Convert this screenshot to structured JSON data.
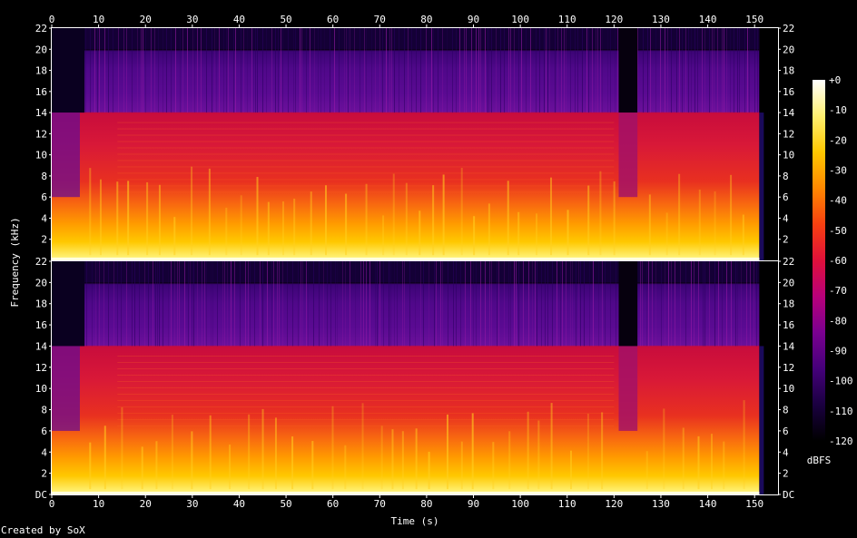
{
  "chart_data": {
    "type": "heatmap",
    "x_axis": {
      "label": "Time (s)",
      "range": [
        0,
        155
      ],
      "ticks": [
        0,
        10,
        20,
        30,
        40,
        50,
        60,
        70,
        80,
        90,
        100,
        110,
        120,
        130,
        140,
        150
      ],
      "tick_labels": [
        "0",
        "10",
        "20",
        "30",
        "40",
        "50",
        "60",
        "70",
        "80",
        "90",
        "100",
        "110",
        "120",
        "130",
        "140",
        "150"
      ]
    },
    "y_axis": {
      "label": "Frequency (kHz)",
      "range": [
        0,
        22
      ],
      "ticks": [
        0,
        2,
        4,
        6,
        8,
        10,
        12,
        14,
        16,
        18,
        20,
        22
      ],
      "top_channel_tick_labels": [
        "2",
        "4",
        "6",
        "8",
        "10",
        "12",
        "14",
        "16",
        "18",
        "20",
        "22"
      ],
      "bottom_channel_tick_labels": [
        "DC",
        "2",
        "4",
        "6",
        "8",
        "10",
        "12",
        "14",
        "16",
        "18",
        "20",
        "22"
      ]
    },
    "channels": 2,
    "colorbar": {
      "label": "dBFS",
      "range": [
        -120,
        0
      ],
      "ticks": [
        0,
        -10,
        -20,
        -30,
        -40,
        -50,
        -60,
        -70,
        -80,
        -90,
        -100,
        -110,
        -120
      ],
      "tick_labels": [
        "+0",
        "-10",
        "-20",
        "-30",
        "-40",
        "-50",
        "-60",
        "-70",
        "-80",
        "-90",
        "-100",
        "-110",
        "-120"
      ],
      "colormap": [
        "#000000",
        "#1a0040",
        "#45007a",
        "#7a0090",
        "#b8007a",
        "#e0103a",
        "#f84010",
        "#ff8800",
        "#ffc800",
        "#fff070",
        "#ffffff"
      ]
    },
    "features": {
      "lowpass_cutoff_khz": 14,
      "ceiling_khz": 20,
      "audio_end_s": 151,
      "quiet_intro_s": [
        0,
        6
      ],
      "quiet_gap_s": [
        121,
        125
      ]
    }
  },
  "footer": {
    "credit": "Created by SoX"
  }
}
